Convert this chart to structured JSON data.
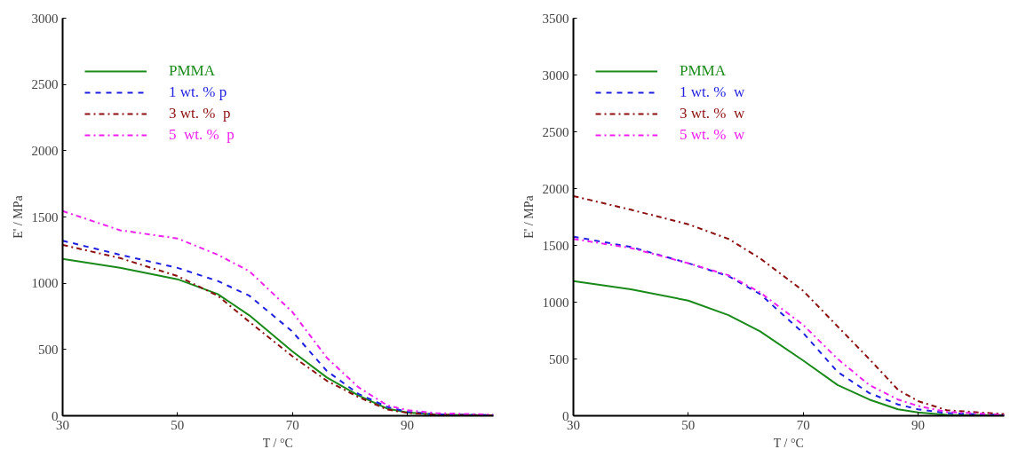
{
  "chart_data": [
    {
      "type": "line",
      "xlabel": "T / °C",
      "ylabel": "E' / MPa",
      "xlim": [
        30,
        105
      ],
      "ylim": [
        0,
        3000
      ],
      "xticks": [
        30,
        50,
        70,
        90
      ],
      "yticks": [
        0,
        500,
        1000,
        1500,
        2000,
        2500,
        3000
      ],
      "grid": false,
      "legend": "top left",
      "x": [
        30,
        40,
        50,
        57,
        62.5,
        70,
        76,
        81.5,
        86.5,
        90,
        95,
        105
      ],
      "series": [
        {
          "name": "PMMA",
          "color": "#1a8a1a",
          "line_style": "solid",
          "values": [
            1183,
            1116,
            1030,
            918,
            758,
            486,
            289,
            153,
            54,
            25,
            8,
            3
          ]
        },
        {
          "name": "1 wt. % p",
          "color": "#1f1fe0",
          "line_style": "dashed",
          "values": [
            1321,
            1215,
            1116,
            1017,
            906,
            635,
            338,
            165,
            67,
            30,
            10,
            5
          ]
        },
        {
          "name": "3 wt. %  p",
          "color": "#8b1010",
          "line_style": "dashdot",
          "values": [
            1289,
            1190,
            1054,
            906,
            709,
            449,
            264,
            141,
            47,
            22,
            7,
            3
          ]
        },
        {
          "name": "5  wt. %  p",
          "color": "#f020f0",
          "line_style": "dashdot",
          "values": [
            1545,
            1400,
            1338,
            1215,
            1091,
            783,
            437,
            215,
            79,
            42,
            20,
            8
          ]
        }
      ]
    },
    {
      "type": "line",
      "xlabel": "T / °C",
      "ylabel": "E' / MPa",
      "xlim": [
        30,
        105
      ],
      "ylim": [
        0,
        3500
      ],
      "xticks": [
        30,
        50,
        70,
        90
      ],
      "yticks": [
        0,
        500,
        1000,
        1500,
        2000,
        2500,
        3000,
        3500
      ],
      "grid": false,
      "legend": "top left",
      "x": [
        30,
        40,
        50,
        57,
        62.5,
        70,
        76,
        81.5,
        86.5,
        90,
        95,
        105
      ],
      "series": [
        {
          "name": "PMMA",
          "color": "#1a8a1a",
          "line_style": "solid",
          "values": [
            1186,
            1114,
            1014,
            886,
            743,
            486,
            271,
            143,
            57,
            29,
            8,
            3
          ]
        },
        {
          "name": "1 wt. %  w",
          "color": "#1f1fe0",
          "line_style": "dashed",
          "values": [
            1577,
            1486,
            1343,
            1229,
            1071,
            729,
            386,
            200,
            100,
            57,
            23,
            5
          ]
        },
        {
          "name": "3 wt. %  w",
          "color": "#8b1010",
          "line_style": "dashdot",
          "values": [
            1934,
            1814,
            1686,
            1557,
            1386,
            1100,
            786,
            500,
            229,
            129,
            49,
            15
          ]
        },
        {
          "name": "5 wt. %  w",
          "color": "#f020f0",
          "line_style": "dashdot",
          "values": [
            1557,
            1477,
            1343,
            1237,
            1086,
            800,
            500,
            271,
            143,
            86,
            34,
            8
          ]
        }
      ]
    }
  ]
}
